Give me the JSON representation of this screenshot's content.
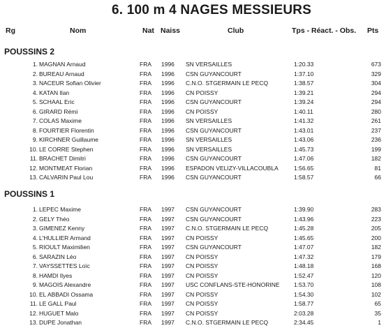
{
  "title": "6.  100 m 4 NAGES MESSIEURS",
  "headers": {
    "rg": "Rg",
    "nom": "Nom",
    "nat": "Nat",
    "naiss": "Naiss",
    "club": "Club",
    "tps": "Tps - Réact. - Obs.",
    "pts": "Pts"
  },
  "sections": [
    {
      "label": "POUSSINS 2",
      "rows": [
        {
          "rank": "1.",
          "name": "MAGNAN Arnaud",
          "nat": "FRA",
          "year": "1996",
          "club": "SN VERSAILLES",
          "time": "1:20.33",
          "pts": "673"
        },
        {
          "rank": "2.",
          "name": "BUREAU Arnaud",
          "nat": "FRA",
          "year": "1996",
          "club": "CSN GUYANCOURT",
          "time": "1:37.10",
          "pts": "329"
        },
        {
          "rank": "3.",
          "name": "NACEUR Sofian Olivier",
          "nat": "FRA",
          "year": "1996",
          "club": "C.N.O. STGERMAIN LE PECQ",
          "time": "1:38.57",
          "pts": "304"
        },
        {
          "rank": "4.",
          "name": "KATAN Ilan",
          "nat": "FRA",
          "year": "1996",
          "club": "CN POISSY",
          "time": "1:39.21",
          "pts": "294"
        },
        {
          "rank": "5.",
          "name": "SCHAAL Eric",
          "nat": "FRA",
          "year": "1996",
          "club": "CSN GUYANCOURT",
          "time": "1:39.24",
          "pts": "294"
        },
        {
          "rank": "6.",
          "name": "GIRARD Rémi",
          "nat": "FRA",
          "year": "1996",
          "club": "CN POISSY",
          "time": "1:40.11",
          "pts": "280"
        },
        {
          "rank": "7.",
          "name": "COLAS Maxime",
          "nat": "FRA",
          "year": "1996",
          "club": "SN VERSAILLES",
          "time": "1:41.32",
          "pts": "261"
        },
        {
          "rank": "8.",
          "name": "FOURTIER Florentin",
          "nat": "FRA",
          "year": "1996",
          "club": "CSN GUYANCOURT",
          "time": "1:43.01",
          "pts": "237"
        },
        {
          "rank": "9.",
          "name": "KIRCHNER Guillaume",
          "nat": "FRA",
          "year": "1996",
          "club": "SN VERSAILLES",
          "time": "1:43.06",
          "pts": "236"
        },
        {
          "rank": "10.",
          "name": "LE CORRE Stephen",
          "nat": "FRA",
          "year": "1996",
          "club": "SN VERSAILLES",
          "time": "1:45.73",
          "pts": "199"
        },
        {
          "rank": "11.",
          "name": "BRACHET Dimitri",
          "nat": "FRA",
          "year": "1996",
          "club": "CSN GUYANCOURT",
          "time": "1:47.06",
          "pts": "182"
        },
        {
          "rank": "12.",
          "name": "MONTMEAT Florian",
          "nat": "FRA",
          "year": "1996",
          "club": "ESPADON VELIZY-VILLACOUBLA",
          "time": "1:56.65",
          "pts": "81"
        },
        {
          "rank": "13.",
          "name": "CALVARIN Paul Lou",
          "nat": "FRA",
          "year": "1996",
          "club": "CSN GUYANCOURT",
          "time": "1:58.57",
          "pts": "66"
        }
      ]
    },
    {
      "label": "POUSSINS 1",
      "rows": [
        {
          "rank": "1.",
          "name": "LEPEC Maxime",
          "nat": "FRA",
          "year": "1997",
          "club": "CSN GUYANCOURT",
          "time": "1:39.90",
          "pts": "283"
        },
        {
          "rank": "2.",
          "name": "GELY Théo",
          "nat": "FRA",
          "year": "1997",
          "club": "CSN GUYANCOURT",
          "time": "1:43.96",
          "pts": "223"
        },
        {
          "rank": "3.",
          "name": "GIMENEZ Kenny",
          "nat": "FRA",
          "year": "1997",
          "club": "C.N.O. STGERMAIN LE PECQ",
          "time": "1:45.28",
          "pts": "205"
        },
        {
          "rank": "4.",
          "name": "L'HULLIER Armand",
          "nat": "FRA",
          "year": "1997",
          "club": "CN POISSY",
          "time": "1:45.65",
          "pts": "200"
        },
        {
          "rank": "5.",
          "name": "RIOULT Maximilien",
          "nat": "FRA",
          "year": "1997",
          "club": "CSN GUYANCOURT",
          "time": "1:47.07",
          "pts": "182"
        },
        {
          "rank": "6.",
          "name": "SARAZIN Léo",
          "nat": "FRA",
          "year": "1997",
          "club": "CN POISSY",
          "time": "1:47.32",
          "pts": "179"
        },
        {
          "rank": "7.",
          "name": "VAYSSETTES Loïc",
          "nat": "FRA",
          "year": "1997",
          "club": "CN POISSY",
          "time": "1:48.18",
          "pts": "168"
        },
        {
          "rank": "8.",
          "name": "HAMDI Ilyes",
          "nat": "FRA",
          "year": "1997",
          "club": "CN POISSY",
          "time": "1:52.47",
          "pts": "120"
        },
        {
          "rank": "9.",
          "name": "MAGOIS Alexandre",
          "nat": "FRA",
          "year": "1997",
          "club": "USC CONFLANS-STE-HONORINE",
          "time": "1:53.70",
          "pts": "108"
        },
        {
          "rank": "10.",
          "name": "EL ABBADI Ossama",
          "nat": "FRA",
          "year": "1997",
          "club": "CN POISSY",
          "time": "1:54.30",
          "pts": "102"
        },
        {
          "rank": "11.",
          "name": "LE GALL Paul",
          "nat": "FRA",
          "year": "1997",
          "club": "CN POISSY",
          "time": "1:58.77",
          "pts": "65"
        },
        {
          "rank": "12.",
          "name": "HUGUET Malo",
          "nat": "FRA",
          "year": "1997",
          "club": "CN POISSY",
          "time": "2:03.28",
          "pts": "35"
        },
        {
          "rank": "13.",
          "name": "DUPE Jonathan",
          "nat": "FRA",
          "year": "1997",
          "club": "C.N.O. STGERMAIN LE PECQ",
          "time": "2:34.45",
          "pts": "1"
        }
      ]
    }
  ]
}
